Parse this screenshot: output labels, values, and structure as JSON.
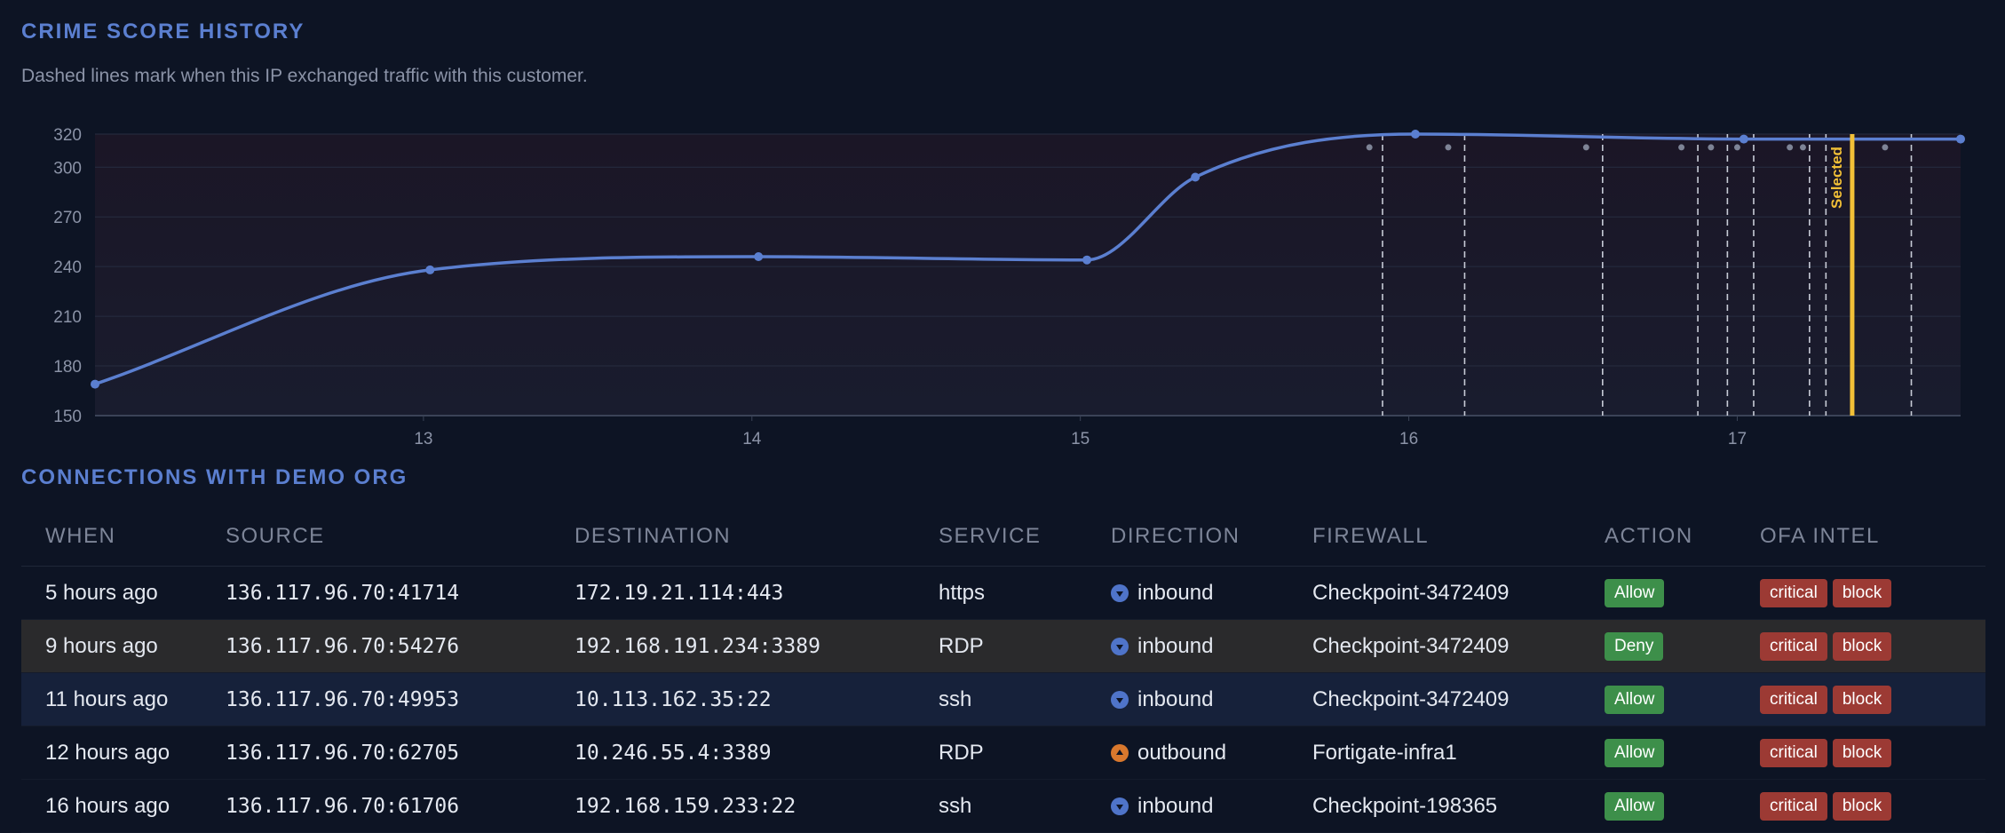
{
  "chart_section": {
    "title": "CRIME SCORE HISTORY",
    "subtitle": "Dashed lines mark when this IP exchanged traffic with this customer."
  },
  "chart_data": {
    "type": "line",
    "title": "",
    "xlabel": "",
    "ylabel": "",
    "xlim": [
      12.0,
      17.68
    ],
    "ylim": [
      150,
      320
    ],
    "xticks": [
      13,
      14,
      15,
      16,
      17
    ],
    "yticks": [
      150,
      180,
      210,
      240,
      270,
      300,
      320
    ],
    "grid": true,
    "series": [
      {
        "color": "#5b7fd0",
        "x": [
          12.0,
          13.02,
          14.02,
          15.02,
          15.35,
          16.02,
          17.02,
          17.68
        ],
        "y": [
          169,
          238,
          246,
          244,
          294,
          320,
          317,
          317
        ]
      }
    ],
    "traffic_lines": [
      15.92,
      16.17,
      16.59,
      16.88,
      16.97,
      17.05,
      17.22,
      17.27,
      17.53
    ],
    "traffic_markers": [
      15.88,
      16.12,
      16.54,
      16.83,
      16.92,
      17.0,
      17.16,
      17.2,
      17.45
    ],
    "selected": {
      "x": 17.35,
      "label": "Selected",
      "color": "#f2c037"
    }
  },
  "connections": {
    "title": "CONNECTIONS WITH DEMO ORG",
    "columns": [
      "WHEN",
      "SOURCE",
      "DESTINATION",
      "SERVICE",
      "DIRECTION",
      "FIREWALL",
      "ACTION",
      "OFA INTEL"
    ],
    "rows": [
      {
        "when": "5 hours ago",
        "source": "136.117.96.70:41714",
        "destination": "172.19.21.114:443",
        "service": "https",
        "direction": "inbound",
        "direction_icon": "inbound-arrow-icon",
        "firewall": "Checkpoint-3472409",
        "action": "Allow",
        "intel": [
          "critical",
          "block"
        ]
      },
      {
        "when": "9 hours ago",
        "source": "136.117.96.70:54276",
        "destination": "192.168.191.234:3389",
        "service": "RDP",
        "direction": "inbound",
        "direction_icon": "inbound-arrow-icon",
        "firewall": "Checkpoint-3472409",
        "action": "Deny",
        "intel": [
          "critical",
          "block"
        ]
      },
      {
        "when": "11 hours ago",
        "source": "136.117.96.70:49953",
        "destination": "10.113.162.35:22",
        "service": "ssh",
        "direction": "inbound",
        "direction_icon": "inbound-arrow-icon",
        "firewall": "Checkpoint-3472409",
        "action": "Allow",
        "intel": [
          "critical",
          "block"
        ]
      },
      {
        "when": "12 hours ago",
        "source": "136.117.96.70:62705",
        "destination": "10.246.55.4:3389",
        "service": "RDP",
        "direction": "outbound",
        "direction_icon": "outbound-arrow-icon",
        "firewall": "Fortigate-infra1",
        "action": "Allow",
        "intel": [
          "critical",
          "block"
        ]
      },
      {
        "when": "16 hours ago",
        "source": "136.117.96.70:61706",
        "destination": "192.168.159.233:22",
        "service": "ssh",
        "direction": "inbound",
        "direction_icon": "inbound-arrow-icon",
        "firewall": "Checkpoint-198365",
        "action": "Allow",
        "intel": [
          "critical",
          "block"
        ]
      }
    ]
  }
}
